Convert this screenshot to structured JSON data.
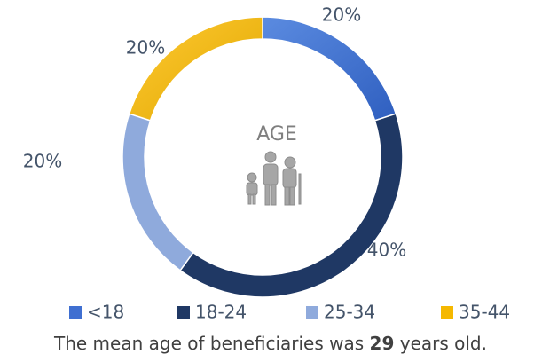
{
  "chart_data": {
    "type": "donut",
    "center_label": "AGE",
    "categories": [
      "<18",
      "18-24",
      "25-34",
      "35-44"
    ],
    "values": [
      20,
      40,
      20,
      20
    ],
    "value_labels": [
      "20%",
      "40%",
      "20%",
      "20%"
    ],
    "colors": [
      "#3f6fd1",
      "#1f3864",
      "#8faadc",
      "#f5b800"
    ],
    "legend": "bottom"
  },
  "caption": {
    "before": "The mean age of beneficiaries was",
    "bold": "29",
    "after": "years old."
  }
}
